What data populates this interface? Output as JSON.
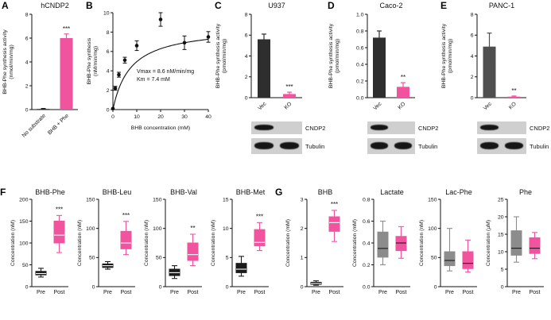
{
  "letters": {
    "A": "A",
    "B": "B",
    "C": "C",
    "D": "D",
    "E": "E",
    "F": "F",
    "G": "G"
  },
  "colors": {
    "accent_pink": "#F0549E",
    "black": "#1a1a1a",
    "gray": "#8c8c8c",
    "vec_dark": "#2e2e2e",
    "axis": "#111111"
  },
  "chart_data": [
    {
      "panel": "A",
      "type": "bar",
      "title": "hCNDP2",
      "ylabel": "BHB-Phe synthesis activity\n(nmol/min/mg)",
      "ylim": [
        0,
        8
      ],
      "yticks": [
        0,
        2,
        4,
        6,
        8
      ],
      "categories": [
        "No substrate",
        "BHB + Phe"
      ],
      "values": [
        0.05,
        6.0
      ],
      "errors": [
        0.04,
        0.35
      ],
      "bar_colors": [
        "#1a1a1a",
        "#F0549E"
      ],
      "significance": {
        "label": "***",
        "bar_index": 1
      }
    },
    {
      "panel": "B",
      "type": "scatter",
      "title": "",
      "ylabel": "BHB-Phe synthesis\n(nM/min/mg)",
      "xlabel": "BHB concentration (mM)",
      "ylim": [
        0,
        10
      ],
      "yticks": [
        0,
        2,
        4,
        6,
        8,
        10
      ],
      "xlim": [
        0,
        40
      ],
      "xticks": [
        0,
        10,
        20,
        30,
        40
      ],
      "points": {
        "x": [
          0,
          1,
          2.5,
          5,
          10,
          20,
          30,
          40
        ],
        "y": [
          0.1,
          2.2,
          3.6,
          5.1,
          6.6,
          9.3,
          6.9,
          7.5
        ],
        "yerr": [
          0,
          0.2,
          0.25,
          0.3,
          0.5,
          0.7,
          0.7,
          0.55
        ]
      },
      "fit": {
        "model": "michaelis-menten",
        "vmax": 8.6,
        "km": 7.4
      },
      "annotation": "Vmax = 8.6 nM/min/mg\nKm = 7.4 mM"
    },
    {
      "panel": "C",
      "type": "bar",
      "title": "U937",
      "ylabel": "BHB-Phe synthesis activity\n(pmol/min/mg)",
      "ylim": [
        0,
        8
      ],
      "yticks": [
        0,
        2,
        4,
        6,
        8
      ],
      "categories": [
        "Vec",
        "KO"
      ],
      "values": [
        5.6,
        0.35
      ],
      "errors": [
        0.5,
        0.18
      ],
      "bar_colors": [
        "#2e2e2e",
        "#F0549E"
      ],
      "significance": {
        "label": "***",
        "bar_index": 1
      },
      "blot": {
        "rows": [
          "CNDP2",
          "Tubulin"
        ],
        "lanes": [
          "Vec",
          "KO"
        ],
        "bands": [
          [
            1,
            0
          ],
          [
            1,
            1
          ]
        ]
      }
    },
    {
      "panel": "D",
      "type": "bar",
      "title": "Caco-2",
      "ylabel": "BHB-Phe synthesis activity\n(pmol/min/mg)",
      "ylim": [
        0,
        1
      ],
      "yticks": [
        0,
        0.2,
        0.4,
        0.6,
        0.8,
        1
      ],
      "ytick_labels": [
        "0.0",
        "0.2",
        "0.4",
        "0.6",
        "0.8",
        "1.0"
      ],
      "categories": [
        "Vec",
        "KO"
      ],
      "values": [
        0.72,
        0.13
      ],
      "errors": [
        0.08,
        0.05
      ],
      "bar_colors": [
        "#2e2e2e",
        "#F0549E"
      ],
      "significance": {
        "label": "**",
        "bar_index": 1
      },
      "blot": {
        "rows": [
          "CNDP2",
          "Tubulin"
        ],
        "lanes": [
          "Vec",
          "KO"
        ],
        "bands": [
          [
            1,
            0
          ],
          [
            1,
            1
          ]
        ]
      }
    },
    {
      "panel": "E",
      "type": "bar",
      "title": "PANC-1",
      "ylabel": "BHB-Phe synthesis activity\n(pmol/min/mg)",
      "ylim": [
        0,
        8
      ],
      "yticks": [
        0,
        2,
        4,
        6,
        8
      ],
      "categories": [
        "Vec",
        "KO"
      ],
      "values": [
        4.9,
        0.1
      ],
      "errors": [
        1.3,
        0.06
      ],
      "bar_colors": [
        "#4f4f4f",
        "#F0549E"
      ],
      "significance": {
        "label": "**",
        "bar_index": 1
      },
      "blot": {
        "rows": [
          "CNDP2",
          "Tubulin"
        ],
        "lanes": [
          "Vec",
          "KO"
        ],
        "bands": [
          [
            1,
            0
          ],
          [
            1,
            1
          ]
        ]
      }
    },
    {
      "panel": "F",
      "type": "box",
      "title": "BHB-Phe",
      "ylabel": "Concentration (nM)",
      "ylim": [
        0,
        200
      ],
      "yticks": [
        0,
        50,
        100,
        150,
        200
      ],
      "categories": [
        "Pre",
        "Post"
      ],
      "significance": "***",
      "boxes": [
        {
          "min": 22,
          "q1": 27,
          "median": 30,
          "q3": 35,
          "max": 42,
          "color": "#1a1a1a",
          "median_color": "#ffffff"
        },
        {
          "min": 78,
          "q1": 100,
          "median": 118,
          "q3": 150,
          "max": 163,
          "color": "#F0549E",
          "median_color": "#ffffff"
        }
      ]
    },
    {
      "panel": "F",
      "type": "box",
      "title": "BHB-Leu",
      "ylabel": "Concentration (nM)",
      "ylim": [
        0,
        150
      ],
      "yticks": [
        0,
        50,
        100,
        150
      ],
      "categories": [
        "Pre",
        "Post"
      ],
      "significance": "***",
      "boxes": [
        {
          "min": 30,
          "q1": 33,
          "median": 36,
          "q3": 39,
          "max": 43,
          "color": "#1a1a1a",
          "median_color": "#ffffff"
        },
        {
          "min": 55,
          "q1": 65,
          "median": 75,
          "q3": 95,
          "max": 112,
          "color": "#F0549E",
          "median_color": "#ffffff"
        }
      ]
    },
    {
      "panel": "F",
      "type": "box",
      "title": "BHB-Val",
      "ylabel": "Concentration (nM)",
      "ylim": [
        0,
        150
      ],
      "yticks": [
        0,
        50,
        100,
        150
      ],
      "categories": [
        "Pre",
        "Post"
      ],
      "significance": "**",
      "boxes": [
        {
          "min": 14,
          "q1": 19,
          "median": 24,
          "q3": 30,
          "max": 36,
          "color": "#1a1a1a",
          "median_color": "#ffffff"
        },
        {
          "min": 36,
          "q1": 45,
          "median": 55,
          "q3": 75,
          "max": 90,
          "color": "#F0549E",
          "median_color": "#ffffff"
        }
      ]
    },
    {
      "panel": "F",
      "type": "box",
      "title": "BHB-Met",
      "ylabel": "Concentration (nM)",
      "ylim": [
        0,
        15
      ],
      "yticks": [
        0,
        5,
        10,
        15
      ],
      "categories": [
        "Pre",
        "Post"
      ],
      "significance": "***",
      "boxes": [
        {
          "min": 1.8,
          "q1": 2.4,
          "median": 3,
          "q3": 4,
          "max": 5.2,
          "color": "#1a1a1a",
          "median_color": "#ffffff"
        },
        {
          "min": 6.2,
          "q1": 7,
          "median": 7.6,
          "q3": 9.8,
          "max": 11,
          "color": "#F0549E",
          "median_color": "#ffffff"
        }
      ]
    },
    {
      "panel": "G",
      "type": "box",
      "title": "BHB",
      "ylabel": "Concentration (mM)",
      "ylim": [
        0,
        3
      ],
      "yticks": [
        0,
        1,
        2,
        3
      ],
      "categories": [
        "Pre",
        "Post"
      ],
      "significance": "***",
      "boxes": [
        {
          "min": 0.05,
          "q1": 0.08,
          "median": 0.11,
          "q3": 0.15,
          "max": 0.2,
          "color": "#1a1a1a",
          "median_color": "#ffffff"
        },
        {
          "min": 1.55,
          "q1": 1.9,
          "median": 2.2,
          "q3": 2.4,
          "max": 2.62,
          "color": "#F0549E",
          "median_color": "#ffffff"
        }
      ]
    },
    {
      "panel": "G",
      "type": "box",
      "title": "Lactate",
      "ylabel": "Concentration (mM)",
      "ylim": [
        0,
        0.8
      ],
      "yticks": [
        0,
        0.2,
        0.4,
        0.6,
        0.8
      ],
      "ytick_labels": [
        "0.0",
        "0.2",
        "0.4",
        "0.6",
        "0.8"
      ],
      "categories": [
        "Pre",
        "Post"
      ],
      "boxes": [
        {
          "min": 0.2,
          "q1": 0.27,
          "median": 0.35,
          "q3": 0.5,
          "max": 0.6,
          "color": "#8c8c8c",
          "median_color": "#1a1a1a"
        },
        {
          "min": 0.26,
          "q1": 0.33,
          "median": 0.4,
          "q3": 0.46,
          "max": 0.55,
          "color": "#F0549E",
          "median_color": "#1a1a1a"
        }
      ]
    },
    {
      "panel": "G",
      "type": "box",
      "title": "Lac-Phe",
      "ylabel": "Concentration (nM)",
      "ylim": [
        0,
        150
      ],
      "yticks": [
        0,
        50,
        100,
        150
      ],
      "categories": [
        "Pre",
        "Post"
      ],
      "boxes": [
        {
          "min": 27,
          "q1": 36,
          "median": 45,
          "q3": 60,
          "max": 100,
          "color": "#8c8c8c",
          "median_color": "#1a1a1a"
        },
        {
          "min": 25,
          "q1": 31,
          "median": 40,
          "q3": 60,
          "max": 80,
          "color": "#F0549E",
          "median_color": "#1a1a1a"
        }
      ]
    },
    {
      "panel": "G",
      "type": "box",
      "title": "Phe",
      "ylabel": "Concentration (µM)",
      "ylim": [
        0,
        25
      ],
      "yticks": [
        0,
        5,
        10,
        15,
        20,
        25
      ],
      "categories": [
        "Pre",
        "Post"
      ],
      "boxes": [
        {
          "min": 7,
          "q1": 9,
          "median": 11,
          "q3": 16,
          "max": 20,
          "color": "#8c8c8c",
          "median_color": "#1a1a1a"
        },
        {
          "min": 8,
          "q1": 9.5,
          "median": 11,
          "q3": 14,
          "max": 15.5,
          "color": "#F0549E",
          "median_color": "#1a1a1a"
        }
      ]
    }
  ]
}
